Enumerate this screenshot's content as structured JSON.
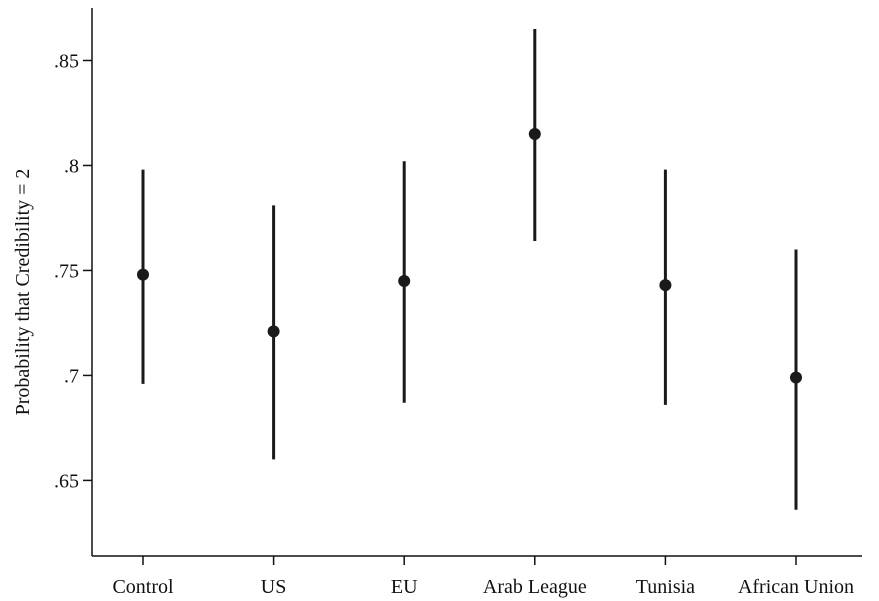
{
  "chart_data": {
    "type": "scatter",
    "title": "",
    "xlabel": "",
    "ylabel": "Probability that Credibility = 2",
    "categories": [
      "Control",
      "US",
      "EU",
      "Arab League",
      "Tunisia",
      "African Union"
    ],
    "estimates": [
      0.748,
      0.721,
      0.745,
      0.815,
      0.743,
      0.699
    ],
    "ci_low": [
      0.696,
      0.66,
      0.687,
      0.764,
      0.686,
      0.636
    ],
    "ci_high": [
      0.798,
      0.781,
      0.802,
      0.865,
      0.798,
      0.76
    ],
    "ylim": [
      0.614,
      0.875
    ],
    "yticks": [
      0.65,
      0.7,
      0.75,
      0.8,
      0.85
    ],
    "ytick_labels": [
      ".65",
      ".7",
      ".75",
      ".8",
      ".85"
    ],
    "grid": false,
    "legend": "none",
    "colors": {
      "marker": "#1a1a1a",
      "axis": "#111111"
    }
  }
}
